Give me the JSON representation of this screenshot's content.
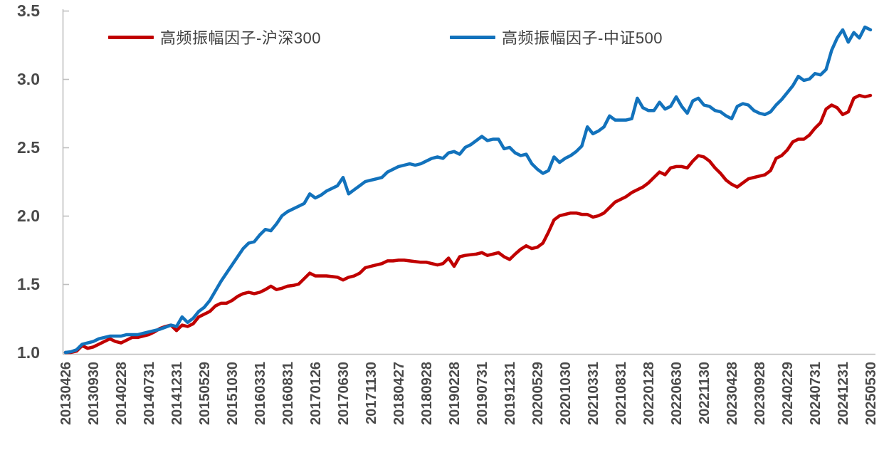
{
  "chart_data": {
    "type": "line",
    "title": "",
    "xlabel": "",
    "ylabel": "",
    "ylim": [
      1.0,
      3.5
    ],
    "y_tick_labels": [
      "1.0",
      "1.5",
      "2.0",
      "2.5",
      "3.0",
      "3.5"
    ],
    "y_tick_values": [
      1.0,
      1.5,
      2.0,
      2.5,
      3.0,
      3.5
    ],
    "grid": false,
    "legend_position": "top",
    "x_tick_labels": [
      "20130426",
      "20130930",
      "20140228",
      "20140731",
      "20141231",
      "20150529",
      "20151030",
      "20160331",
      "20160831",
      "20170126",
      "20170630",
      "20171130",
      "20180427",
      "20180928",
      "20190228",
      "20190731",
      "20191231",
      "20200529",
      "20201030",
      "20210331",
      "20210831",
      "20220128",
      "20220630",
      "20221130",
      "20230428",
      "20230928",
      "20240229",
      "20240731",
      "20241231",
      "20250530"
    ],
    "x_label_every_n_points": 5,
    "axis_color": "#bfbfbf",
    "tick_label_color": "#4a4a4a",
    "series": [
      {
        "name": "高频振幅因子-沪深300",
        "color": "#c00000",
        "values": [
          1.0,
          1.0,
          1.01,
          1.05,
          1.03,
          1.04,
          1.06,
          1.08,
          1.1,
          1.08,
          1.07,
          1.09,
          1.11,
          1.11,
          1.12,
          1.13,
          1.15,
          1.175,
          1.19,
          1.2,
          1.16,
          1.2,
          1.19,
          1.21,
          1.26,
          1.28,
          1.3,
          1.34,
          1.36,
          1.36,
          1.38,
          1.41,
          1.43,
          1.44,
          1.43,
          1.44,
          1.46,
          1.485,
          1.46,
          1.47,
          1.485,
          1.49,
          1.5,
          1.54,
          1.58,
          1.56,
          1.56,
          1.56,
          1.555,
          1.55,
          1.53,
          1.55,
          1.56,
          1.58,
          1.62,
          1.63,
          1.64,
          1.65,
          1.67,
          1.67,
          1.675,
          1.675,
          1.67,
          1.665,
          1.66,
          1.66,
          1.65,
          1.64,
          1.65,
          1.69,
          1.63,
          1.7,
          1.71,
          1.715,
          1.72,
          1.73,
          1.71,
          1.72,
          1.73,
          1.7,
          1.68,
          1.72,
          1.755,
          1.78,
          1.76,
          1.77,
          1.8,
          1.88,
          1.97,
          2.0,
          2.01,
          2.02,
          2.02,
          2.01,
          2.01,
          1.99,
          2.0,
          2.02,
          2.06,
          2.1,
          2.12,
          2.14,
          2.17,
          2.19,
          2.21,
          2.24,
          2.28,
          2.32,
          2.3,
          2.35,
          2.36,
          2.36,
          2.35,
          2.4,
          2.44,
          2.43,
          2.4,
          2.35,
          2.31,
          2.26,
          2.23,
          2.21,
          2.24,
          2.27,
          2.28,
          2.29,
          2.3,
          2.33,
          2.42,
          2.44,
          2.48,
          2.54,
          2.56,
          2.56,
          2.59,
          2.64,
          2.68,
          2.78,
          2.81,
          2.79,
          2.74,
          2.76,
          2.86,
          2.88,
          2.87,
          2.88
        ]
      },
      {
        "name": "高频振幅因子-中证500",
        "color": "#1272bc",
        "values": [
          1.0,
          1.005,
          1.02,
          1.06,
          1.07,
          1.08,
          1.1,
          1.11,
          1.12,
          1.12,
          1.12,
          1.13,
          1.13,
          1.13,
          1.14,
          1.15,
          1.16,
          1.17,
          1.185,
          1.2,
          1.19,
          1.26,
          1.22,
          1.25,
          1.3,
          1.33,
          1.38,
          1.45,
          1.52,
          1.58,
          1.64,
          1.7,
          1.76,
          1.8,
          1.81,
          1.86,
          1.9,
          1.89,
          1.94,
          2.0,
          2.03,
          2.05,
          2.07,
          2.09,
          2.16,
          2.13,
          2.15,
          2.18,
          2.2,
          2.22,
          2.28,
          2.16,
          2.19,
          2.22,
          2.25,
          2.26,
          2.27,
          2.28,
          2.32,
          2.34,
          2.36,
          2.37,
          2.38,
          2.37,
          2.38,
          2.4,
          2.42,
          2.43,
          2.42,
          2.46,
          2.47,
          2.45,
          2.5,
          2.52,
          2.55,
          2.58,
          2.55,
          2.56,
          2.56,
          2.49,
          2.5,
          2.46,
          2.44,
          2.45,
          2.38,
          2.34,
          2.31,
          2.33,
          2.43,
          2.39,
          2.42,
          2.44,
          2.47,
          2.51,
          2.65,
          2.6,
          2.62,
          2.65,
          2.73,
          2.7,
          2.7,
          2.7,
          2.71,
          2.86,
          2.79,
          2.77,
          2.77,
          2.83,
          2.78,
          2.8,
          2.87,
          2.8,
          2.75,
          2.84,
          2.86,
          2.81,
          2.8,
          2.77,
          2.76,
          2.73,
          2.71,
          2.8,
          2.82,
          2.81,
          2.77,
          2.75,
          2.74,
          2.76,
          2.81,
          2.85,
          2.9,
          2.95,
          3.02,
          2.99,
          3.0,
          3.04,
          3.03,
          3.07,
          3.21,
          3.3,
          3.36,
          3.27,
          3.34,
          3.3,
          3.38,
          3.36
        ]
      }
    ]
  },
  "legend": {
    "item1": "高频振幅因子-沪深300",
    "item2": "高频振幅因子-中证500"
  }
}
